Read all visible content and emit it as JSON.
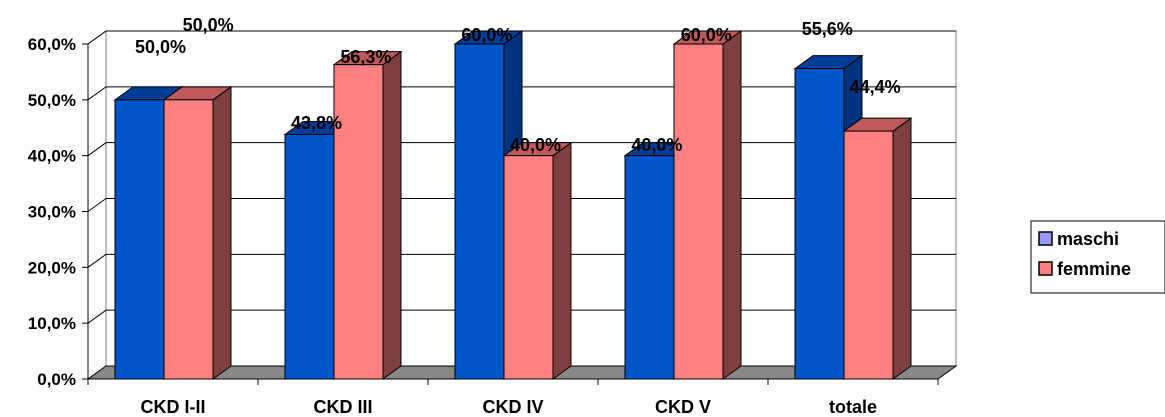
{
  "chart_data": {
    "type": "bar",
    "title": "",
    "xlabel": "",
    "ylabel": "",
    "categories": [
      "CKD I-II",
      "CKD III",
      "CKD IV",
      "CKD V",
      "totale"
    ],
    "series": [
      {
        "name": "maschi",
        "values": [
          50.0,
          43.8,
          60.0,
          40.0,
          55.6
        ],
        "labels": [
          "50,0%",
          "43,8%",
          "60,0%",
          "40,0%",
          "55,6%"
        ]
      },
      {
        "name": "femmine",
        "values": [
          50.0,
          56.3,
          40.0,
          60.0,
          44.4
        ],
        "labels": [
          "50,0%",
          "56,3%",
          "40,0%",
          "60,0%",
          "44,4%"
        ]
      }
    ],
    "ylim": [
      0,
      60
    ],
    "yticks": [
      "0,0%",
      "10,0%",
      "20,0%",
      "30,0%",
      "40,0%",
      "50,0%",
      "60,0%"
    ],
    "grid": true,
    "legend_position": "right",
    "three_d": true,
    "colors": {
      "maschi": "#0055c8",
      "maschi_top": "#003d99",
      "maschi_side": "#00337f",
      "femmine": "#ff8080",
      "femmine_top": "#c05a5a",
      "femmine_side": "#7f3f3f",
      "legend_maschi": "#9999ff",
      "legend_femmine": "#ff8080",
      "wall": "#ffffff",
      "floor": "#888888"
    }
  }
}
